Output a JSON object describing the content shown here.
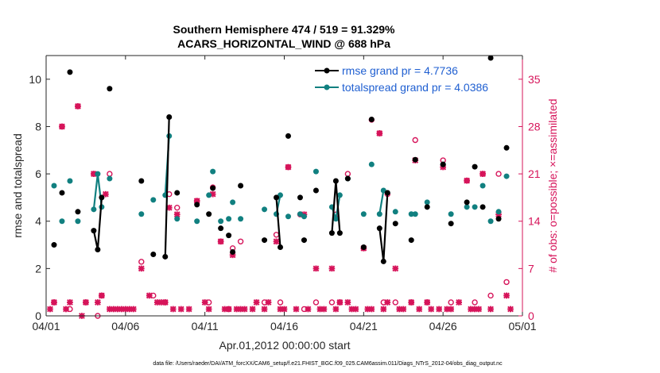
{
  "chart_data": {
    "type": "line",
    "title_line1": "Southern Hemisphere 474 / 519 = 91.329%",
    "title_line2": "ACARS_HORIZONTAL_WIND @ 688 hPa",
    "xlabel": "Apr.01,2012 00:00:00 start",
    "ylabel_left": "rmse and totalspread",
    "ylabel_right": "# of obs: o=possible; ×=assimilated",
    "footnote": "data file: /Users/raeder/DAI/ATM_forcXX/CAM6_setup/f.e21.FHIST_BGC.f09_025.CAM6assim.011/Diags_NTrS_2012-04/obs_diag_output.nc",
    "x_ticks": [
      "04/01",
      "04/06",
      "04/11",
      "04/16",
      "04/21",
      "04/26",
      "05/01"
    ],
    "x_tick_days": [
      0,
      5,
      10,
      15,
      20,
      25,
      30
    ],
    "xlim": [
      0,
      30
    ],
    "ylim_left": [
      0,
      11
    ],
    "y_ticks_left": [
      "0",
      "2",
      "4",
      "6",
      "8",
      "10"
    ],
    "ylim_right": [
      0,
      38.5
    ],
    "y_ticks_right": [
      "0",
      "7",
      "14",
      "21",
      "28",
      "35"
    ],
    "colors": {
      "rmse": "#000000",
      "spread": "#118080",
      "obs": "#d6145a",
      "legend_text": "#1f5fd1"
    },
    "legend": [
      {
        "name": "rmse",
        "label": "rmse grand pr = 4.7736"
      },
      {
        "name": "spread",
        "label": "totalspread grand pr = 4.0386"
      }
    ],
    "series": [
      {
        "name": "rmse",
        "points": [
          [
            0.5,
            3.0
          ],
          [
            1.0,
            5.2
          ],
          [
            1.5,
            10.3
          ],
          [
            2.0,
            4.4
          ],
          [
            3.0,
            3.6
          ],
          [
            3.25,
            2.8
          ],
          [
            3.5,
            5.0
          ],
          [
            4.0,
            9.6
          ],
          [
            6.0,
            5.7
          ],
          [
            6.75,
            2.6
          ],
          [
            7.5,
            2.5
          ],
          [
            7.75,
            8.4
          ],
          [
            8.25,
            5.2
          ],
          [
            9.5,
            4.7
          ],
          [
            10.25,
            4.3
          ],
          [
            10.5,
            5.4
          ],
          [
            11.0,
            3.7
          ],
          [
            11.5,
            3.4
          ],
          [
            11.75,
            2.7
          ],
          [
            12.25,
            5.5
          ],
          [
            13.75,
            3.2
          ],
          [
            14.5,
            5.0
          ],
          [
            14.75,
            2.9
          ],
          [
            15.25,
            7.6
          ],
          [
            16.0,
            5.0
          ],
          [
            16.25,
            3.2
          ],
          [
            17.0,
            5.3
          ],
          [
            18.0,
            3.5
          ],
          [
            18.25,
            5.7
          ],
          [
            18.5,
            3.5
          ],
          [
            19.0,
            5.8
          ],
          [
            20.0,
            2.9
          ],
          [
            20.5,
            8.3
          ],
          [
            21.0,
            3.7
          ],
          [
            21.25,
            2.3
          ],
          [
            21.5,
            5.2
          ],
          [
            22.0,
            3.9
          ],
          [
            23.0,
            3.2
          ],
          [
            23.25,
            6.6
          ],
          [
            24.0,
            4.6
          ],
          [
            25.0,
            6.4
          ],
          [
            25.5,
            3.9
          ],
          [
            26.5,
            4.8
          ],
          [
            27.0,
            6.3
          ],
          [
            27.5,
            4.6
          ],
          [
            28.0,
            10.9
          ],
          [
            28.5,
            4.1
          ],
          [
            29.0,
            7.1
          ]
        ]
      },
      {
        "name": "spread",
        "points": [
          [
            0.5,
            5.5
          ],
          [
            1.0,
            4.0
          ],
          [
            1.5,
            5.7
          ],
          [
            2.0,
            4.0
          ],
          [
            3.0,
            4.5
          ],
          [
            3.25,
            6.0
          ],
          [
            3.5,
            4.6
          ],
          [
            4.0,
            5.8
          ],
          [
            6.0,
            4.3
          ],
          [
            6.75,
            4.9
          ],
          [
            7.5,
            5.1
          ],
          [
            7.75,
            7.6
          ],
          [
            8.25,
            4.1
          ],
          [
            9.5,
            4.0
          ],
          [
            10.25,
            5.1
          ],
          [
            10.5,
            6.1
          ],
          [
            11.0,
            4.0
          ],
          [
            11.5,
            4.1
          ],
          [
            11.75,
            4.8
          ],
          [
            12.25,
            4.1
          ],
          [
            13.75,
            4.5
          ],
          [
            14.5,
            4.3
          ],
          [
            14.75,
            5.1
          ],
          [
            15.25,
            4.2
          ],
          [
            16.0,
            4.3
          ],
          [
            16.25,
            4.2
          ],
          [
            17.0,
            6.1
          ],
          [
            18.0,
            4.6
          ],
          [
            18.25,
            4.1
          ],
          [
            18.5,
            5.1
          ],
          [
            19.0,
            5.8
          ],
          [
            20.0,
            4.3
          ],
          [
            20.5,
            6.4
          ],
          [
            21.0,
            4.3
          ],
          [
            21.25,
            5.3
          ],
          [
            21.5,
            5.2
          ],
          [
            22.0,
            4.4
          ],
          [
            23.0,
            4.3
          ],
          [
            23.25,
            4.3
          ],
          [
            24.0,
            4.8
          ],
          [
            25.0,
            6.4
          ],
          [
            25.5,
            4.3
          ],
          [
            26.5,
            4.6
          ],
          [
            27.0,
            4.6
          ],
          [
            27.5,
            5.5
          ],
          [
            28.0,
            4.0
          ],
          [
            28.5,
            4.4
          ],
          [
            29.0,
            5.9
          ]
        ]
      },
      {
        "name": "obs_possible",
        "points": [
          [
            0.5,
            2
          ],
          [
            1.0,
            28
          ],
          [
            1.5,
            1
          ],
          [
            2.0,
            31
          ],
          [
            2.5,
            2
          ],
          [
            3.0,
            21
          ],
          [
            3.25,
            0
          ],
          [
            3.5,
            3
          ],
          [
            4.0,
            21
          ],
          [
            6.0,
            8
          ],
          [
            6.75,
            3
          ],
          [
            7.5,
            2
          ],
          [
            7.75,
            18
          ],
          [
            8.25,
            16
          ],
          [
            9.5,
            17
          ],
          [
            10.25,
            2
          ],
          [
            10.5,
            19
          ],
          [
            11.0,
            11
          ],
          [
            11.5,
            1
          ],
          [
            11.75,
            10
          ],
          [
            12.25,
            11
          ],
          [
            13.75,
            2
          ],
          [
            14.5,
            12
          ],
          [
            14.75,
            2
          ],
          [
            15.25,
            22
          ],
          [
            16.0,
            15
          ],
          [
            16.25,
            1
          ],
          [
            17.0,
            2
          ],
          [
            18.0,
            2
          ],
          [
            18.25,
            15
          ],
          [
            18.5,
            2
          ],
          [
            19.0,
            21
          ],
          [
            20.0,
            10
          ],
          [
            20.5,
            29
          ],
          [
            21.0,
            27
          ],
          [
            21.25,
            2
          ],
          [
            21.5,
            18
          ],
          [
            22.0,
            2
          ],
          [
            23.0,
            2
          ],
          [
            23.25,
            26
          ],
          [
            24.0,
            2
          ],
          [
            25.0,
            23
          ],
          [
            25.5,
            2
          ],
          [
            26.5,
            20
          ],
          [
            27.0,
            2
          ],
          [
            27.5,
            21
          ],
          [
            28.0,
            3
          ],
          [
            28.5,
            21
          ],
          [
            29.0,
            5
          ]
        ]
      },
      {
        "name": "obs_assimilated",
        "points": [
          [
            0.25,
            1
          ],
          [
            0.5,
            2
          ],
          [
            1.0,
            28
          ],
          [
            1.25,
            1
          ],
          [
            1.5,
            2
          ],
          [
            2.0,
            31
          ],
          [
            2.25,
            0
          ],
          [
            2.5,
            2
          ],
          [
            3.0,
            21
          ],
          [
            3.25,
            2
          ],
          [
            3.5,
            3
          ],
          [
            3.75,
            18
          ],
          [
            4.0,
            1
          ],
          [
            4.25,
            1
          ],
          [
            4.5,
            1
          ],
          [
            4.75,
            1
          ],
          [
            5.0,
            1
          ],
          [
            5.25,
            1
          ],
          [
            5.5,
            1
          ],
          [
            6.0,
            7
          ],
          [
            6.5,
            3
          ],
          [
            7.0,
            2
          ],
          [
            7.25,
            2
          ],
          [
            7.5,
            2
          ],
          [
            7.75,
            16
          ],
          [
            8.0,
            1
          ],
          [
            8.25,
            15
          ],
          [
            8.5,
            1
          ],
          [
            9.0,
            1
          ],
          [
            9.5,
            17
          ],
          [
            10.0,
            2
          ],
          [
            10.25,
            1
          ],
          [
            10.5,
            18
          ],
          [
            11.0,
            11
          ],
          [
            11.25,
            1
          ],
          [
            11.5,
            1
          ],
          [
            11.75,
            9
          ],
          [
            12.0,
            1
          ],
          [
            12.25,
            1
          ],
          [
            12.5,
            1
          ],
          [
            13.0,
            1
          ],
          [
            13.25,
            2
          ],
          [
            13.75,
            1
          ],
          [
            14.0,
            2
          ],
          [
            14.5,
            11
          ],
          [
            14.75,
            1
          ],
          [
            15.0,
            1
          ],
          [
            15.25,
            22
          ],
          [
            15.75,
            1
          ],
          [
            16.25,
            15
          ],
          [
            16.5,
            1
          ],
          [
            17.0,
            7
          ],
          [
            17.25,
            1
          ],
          [
            17.5,
            1
          ],
          [
            18.0,
            7
          ],
          [
            18.25,
            1
          ],
          [
            18.5,
            2
          ],
          [
            19.0,
            2
          ],
          [
            19.25,
            1
          ],
          [
            19.5,
            1
          ],
          [
            20.0,
            10
          ],
          [
            20.25,
            1
          ],
          [
            20.5,
            1
          ],
          [
            21.0,
            27
          ],
          [
            21.25,
            1
          ],
          [
            21.5,
            2
          ],
          [
            22.0,
            7
          ],
          [
            22.25,
            1
          ],
          [
            22.5,
            1
          ],
          [
            23.0,
            2
          ],
          [
            23.25,
            23
          ],
          [
            23.5,
            1
          ],
          [
            24.0,
            2
          ],
          [
            24.25,
            1
          ],
          [
            24.75,
            1
          ],
          [
            25.0,
            22
          ],
          [
            25.25,
            1
          ],
          [
            25.5,
            1
          ],
          [
            26.0,
            2
          ],
          [
            26.5,
            20
          ],
          [
            26.75,
            1
          ],
          [
            27.0,
            1
          ],
          [
            27.25,
            1
          ],
          [
            27.5,
            21
          ],
          [
            28.0,
            1
          ],
          [
            28.5,
            15
          ],
          [
            29.0,
            3
          ],
          [
            29.25,
            1
          ]
        ]
      }
    ],
    "line_segments_rmse": [
      [
        3.0,
        3.25,
        3.5
      ],
      [
        7.5,
        7.75
      ],
      [
        14.5,
        14.75
      ],
      [
        18.0,
        18.25,
        18.5
      ],
      [
        21.0,
        21.25,
        21.5
      ]
    ],
    "line_segments_spread": [
      [
        3.0,
        3.25,
        3.5
      ],
      [
        7.5,
        7.75
      ],
      [
        14.5,
        14.75
      ],
      [
        18.0,
        18.25,
        18.5
      ],
      [
        21.0,
        21.25,
        21.5
      ]
    ]
  }
}
